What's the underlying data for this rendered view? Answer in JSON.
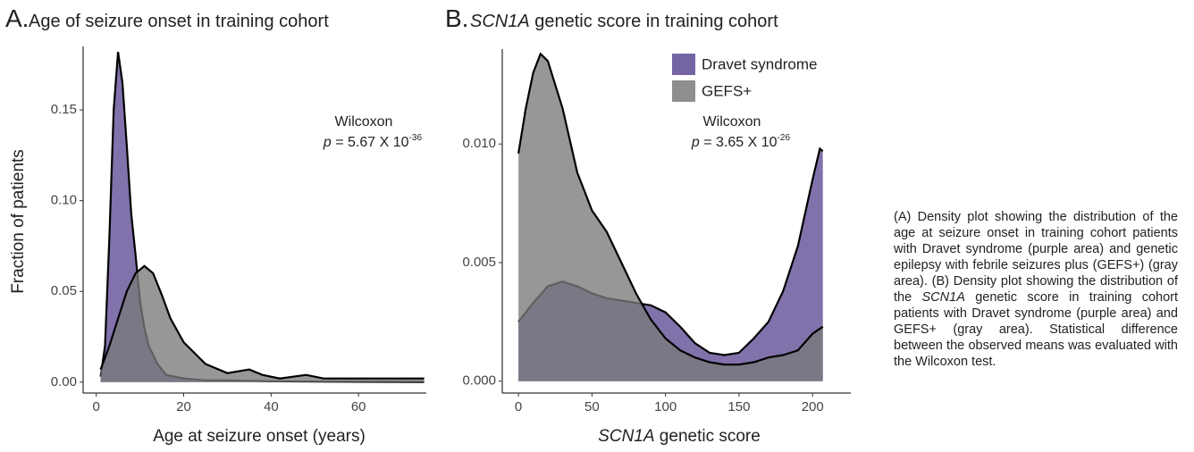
{
  "chart_data": [
    {
      "type": "area",
      "panel": "A.",
      "title": "Age of seizure onset in training cohort",
      "xlabel": "Age at seizure onset (years)",
      "ylabel": "Fraction of patients",
      "annotation": {
        "line1": "Wilcoxon",
        "p": "p",
        "text": " = 5.67 X 10",
        "exponent": "-36"
      },
      "xlim": [
        -3,
        75.5
      ],
      "ylim": [
        -0.006,
        0.185
      ],
      "xticks": [
        0,
        20,
        40,
        60
      ],
      "yticks": [
        {
          "value": 0,
          "label": "0.00"
        },
        {
          "value": 0.05,
          "label": "0.05"
        },
        {
          "value": 0.1,
          "label": "0.10"
        },
        {
          "value": 0.15,
          "label": "0.15"
        }
      ],
      "series": [
        {
          "name": "Dravet syndrome",
          "color": "#5d4a94",
          "x": [
            1,
            2,
            3,
            4,
            5,
            6,
            7,
            8,
            9,
            10,
            11,
            12,
            14,
            16,
            20,
            25,
            30,
            40,
            50,
            60,
            75
          ],
          "values": [
            0.003,
            0.02,
            0.08,
            0.15,
            0.182,
            0.165,
            0.13,
            0.093,
            0.07,
            0.045,
            0.03,
            0.02,
            0.01,
            0.004,
            0.002,
            0.001,
            0.001,
            0.0005,
            0.0003,
            0.0002,
            0.0001
          ]
        },
        {
          "name": "GEFS+",
          "color": "#7a7a7a",
          "x": [
            1,
            3,
            5,
            7,
            9,
            11,
            13,
            15,
            17,
            20,
            25,
            30,
            35,
            38,
            42,
            48,
            52,
            60,
            70,
            75
          ],
          "values": [
            0.007,
            0.02,
            0.035,
            0.05,
            0.06,
            0.064,
            0.06,
            0.048,
            0.035,
            0.022,
            0.01,
            0.005,
            0.007,
            0.004,
            0.002,
            0.004,
            0.002,
            0.002,
            0.002,
            0.002
          ]
        }
      ]
    },
    {
      "type": "area",
      "panel": "B.",
      "title_italic": "SCN1A",
      "title": " genetic score in training cohort",
      "xlabel_italic": "SCN1A",
      "xlabel": " genetic score",
      "annotation": {
        "line1": "Wilcoxon",
        "p": "p",
        "text": " = 3.65 X 10",
        "exponent": "-26"
      },
      "xlim": [
        -11,
        226
      ],
      "ylim": [
        -0.0005,
        0.014
      ],
      "xticks": [
        0,
        50,
        100,
        150,
        200
      ],
      "yticks": [
        {
          "value": 0,
          "label": "0.000"
        },
        {
          "value": 0.005,
          "label": "0.005"
        },
        {
          "value": 0.01,
          "label": "0.010"
        }
      ],
      "series": [
        {
          "name": "Dravet syndrome",
          "color": "#5d4a94",
          "x": [
            0,
            10,
            20,
            30,
            40,
            50,
            60,
            70,
            80,
            90,
            100,
            110,
            120,
            130,
            140,
            150,
            160,
            170,
            180,
            190,
            200,
            205,
            207
          ],
          "values": [
            0.0025,
            0.0033,
            0.004,
            0.0042,
            0.004,
            0.0037,
            0.0035,
            0.0034,
            0.0033,
            0.0032,
            0.0029,
            0.0023,
            0.0016,
            0.0012,
            0.0011,
            0.0012,
            0.0018,
            0.0025,
            0.0038,
            0.0057,
            0.0085,
            0.0098,
            0.0097
          ]
        },
        {
          "name": "GEFS+",
          "color": "#7a7a7a",
          "x": [
            0,
            5,
            10,
            15,
            20,
            30,
            40,
            50,
            60,
            70,
            80,
            90,
            100,
            110,
            120,
            130,
            140,
            150,
            160,
            170,
            180,
            190,
            200,
            207
          ],
          "values": [
            0.0096,
            0.0115,
            0.013,
            0.0138,
            0.0135,
            0.0115,
            0.0088,
            0.0072,
            0.0063,
            0.005,
            0.0037,
            0.0026,
            0.0018,
            0.0013,
            0.001,
            0.0008,
            0.0007,
            0.0007,
            0.0008,
            0.001,
            0.0011,
            0.0013,
            0.002,
            0.0023
          ]
        }
      ]
    }
  ],
  "caption": [
    "(A) Density plot showing the distribution of the age at seizure onset in training cohort patients with Dravet syndrome (purple area) and genetic epilepsy with febrile seizures plus (GEFS+) (gray area). (B) Density plot showing the distribution of the ",
    "SCN1A",
    " genetic score in training cohort patients with Dravet syndrome (purple area) and GEFS+ (gray area). Statistical difference between the observed means was evaluated with the Wilcoxon test."
  ]
}
